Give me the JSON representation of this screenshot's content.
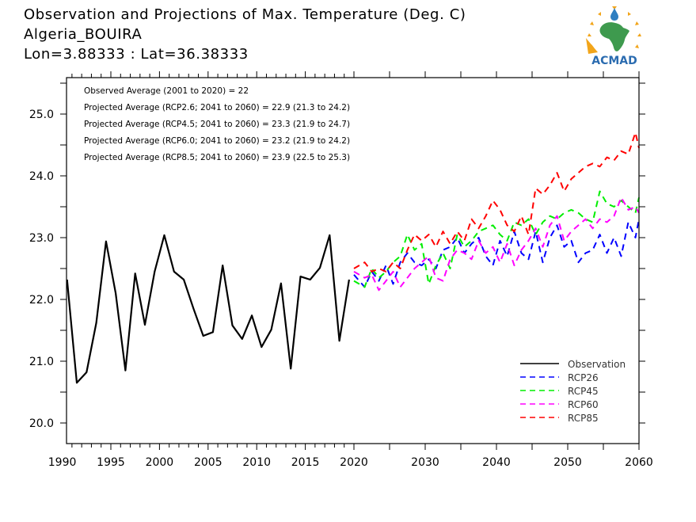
{
  "header": {
    "title": "Observation and Projections of Max. Temperature (Deg. C)",
    "location": "Algeria_BOUIRA",
    "coords": "Lon=3.88333 : Lat=36.38333"
  },
  "logo": {
    "text": "ACMAD",
    "colors": {
      "text": "#2b6cb0",
      "africa": "#3e9a4e",
      "sun": "#f2a51a",
      "drop": "#2f7fc1"
    }
  },
  "chart_data": {
    "type": "line",
    "title": "Observation and Projections of Max. Temperature (Deg. C)",
    "xlabel": "",
    "ylabel": "",
    "xlim": [
      1990,
      2060
    ],
    "ylim": [
      19.7,
      25.6
    ],
    "x_axis_note": "piecewise scale: 1990-2020 wider spacing, 2020-2060 narrower",
    "x_ticks": [
      1990,
      1995,
      2000,
      2005,
      2010,
      2015,
      2020,
      2030,
      2040,
      2050,
      2060
    ],
    "x_tick_labels": [
      "1990",
      "1995",
      "2000",
      "2005",
      "2010",
      "2015",
      "2020",
      "2030",
      "2040",
      "2050",
      "2060"
    ],
    "y_ticks": [
      20.0,
      21.0,
      22.0,
      23.0,
      24.0,
      25.0
    ],
    "y_tick_labels": [
      "20.0",
      "21.0",
      "22.0",
      "23.0",
      "24.0",
      "25.0"
    ],
    "grid": false,
    "legend_position": "bottom-right",
    "annotations": [
      "Observed Average (2001 to 2020) = 22",
      "Projected Average (RCP2.6; 2041 to 2060) = 22.9 (21.3 to 24.2)",
      "Projected Average (RCP4.5; 2041 to 2060) = 23.3 (21.9 to 24.7)",
      "Projected Average (RCP6.0; 2041 to 2060) = 23.2 (21.9 to 24.2)",
      "Projected Average (RCP8.5; 2041 to 2060) = 23.9 (22.5 to 25.3)"
    ],
    "series": [
      {
        "name": "Observation",
        "color": "#000000",
        "dash": false,
        "start_year": 1990,
        "values": [
          22.32,
          20.65,
          20.82,
          21.62,
          22.94,
          22.1,
          20.85,
          22.42,
          21.59,
          22.45,
          23.04,
          22.45,
          22.32,
          21.85,
          21.41,
          21.47,
          22.55,
          21.58,
          21.36,
          21.74,
          21.23,
          21.51,
          22.26,
          20.88,
          22.37,
          22.32,
          22.51,
          23.04,
          21.33,
          22.32
        ]
      },
      {
        "name": "RCP26",
        "color": "#0000ff",
        "dash": true,
        "start_year": 2020,
        "values": [
          22.4,
          22.2,
          22.45,
          22.3,
          22.55,
          22.25,
          22.6,
          22.75,
          22.6,
          22.55,
          22.65,
          22.5,
          22.8,
          22.85,
          23.0,
          22.75,
          22.9,
          23.0,
          22.7,
          22.55,
          22.95,
          22.7,
          23.1,
          22.75,
          22.65,
          23.1,
          22.6,
          23.0,
          23.2,
          22.85,
          22.95,
          22.6,
          22.75,
          22.8,
          23.05,
          22.75,
          23.0,
          22.7,
          23.25,
          23.0,
          23.3
        ]
      },
      {
        "name": "RCP45",
        "color": "#00ee00",
        "dash": true,
        "start_year": 2020,
        "values": [
          22.3,
          22.2,
          22.5,
          22.35,
          22.45,
          22.6,
          22.7,
          23.05,
          22.8,
          22.9,
          22.25,
          22.55,
          22.75,
          22.5,
          23.05,
          22.85,
          22.95,
          23.1,
          23.15,
          23.2,
          23.05,
          22.95,
          23.25,
          23.2,
          23.3,
          23.05,
          23.25,
          23.35,
          23.3,
          23.4,
          23.45,
          23.4,
          23.3,
          23.25,
          23.75,
          23.55,
          23.5,
          23.6,
          23.5,
          23.4,
          23.65
        ]
      },
      {
        "name": "RCP60",
        "color": "#ff00ff",
        "dash": true,
        "start_year": 2020,
        "values": [
          22.45,
          22.35,
          22.4,
          22.15,
          22.3,
          22.45,
          22.2,
          22.35,
          22.5,
          22.6,
          22.7,
          22.35,
          22.3,
          22.65,
          22.8,
          22.75,
          22.65,
          22.95,
          22.75,
          22.85,
          22.6,
          22.9,
          22.55,
          22.8,
          22.95,
          23.15,
          22.85,
          23.2,
          23.35,
          22.95,
          23.1,
          23.2,
          23.3,
          23.15,
          23.3,
          23.25,
          23.35,
          23.65,
          23.45,
          23.5,
          23.4
        ]
      },
      {
        "name": "RCP85",
        "color": "#ff0000",
        "dash": true,
        "start_year": 2020,
        "values": [
          22.5,
          22.6,
          22.45,
          22.5,
          22.45,
          22.6,
          22.5,
          22.8,
          23.05,
          22.95,
          23.05,
          22.85,
          23.1,
          22.9,
          23.1,
          22.95,
          23.3,
          23.15,
          23.35,
          23.6,
          23.45,
          23.2,
          23.1,
          23.35,
          23.05,
          23.8,
          23.7,
          23.85,
          24.05,
          23.75,
          23.95,
          24.05,
          24.15,
          24.2,
          24.15,
          24.3,
          24.25,
          24.4,
          24.35,
          24.7,
          24.45
        ]
      }
    ]
  }
}
